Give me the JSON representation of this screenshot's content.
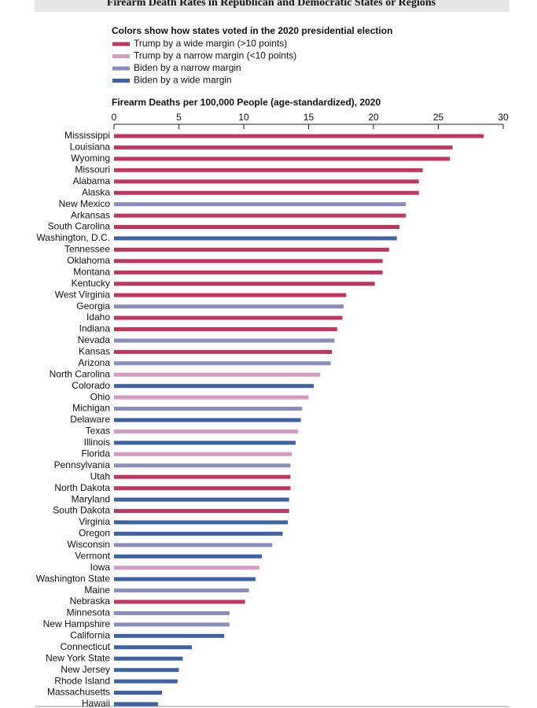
{
  "chart_data": {
    "type": "bar",
    "orientation": "horizontal",
    "title": "Firearm Death Rates in Republican and Democratic States or Regions",
    "legend_title": "Colors show how states voted in the 2020 presidential election",
    "legend": [
      {
        "name": "Trump by a wide margin (>10 points)",
        "color": "#c1365f"
      },
      {
        "name": "Trump by a narrow margin (<10 points)",
        "color": "#d69bc3"
      },
      {
        "name": "Biden by a narrow margin",
        "color": "#8b8dc1"
      },
      {
        "name": "Biden by a wide margin",
        "color": "#3d63a5"
      }
    ],
    "x_label": "Firearm Deaths per 100,000 People (age-standardized), 2020",
    "xlim": [
      0,
      30
    ],
    "xticks": [
      0,
      5,
      10,
      15,
      20,
      25,
      30
    ],
    "grid": false,
    "categories": [
      "Mississippi",
      "Louisiana",
      "Wyoming",
      "Missouri",
      "Alabama",
      "Alaska",
      "New Mexico",
      "Arkansas",
      "South Carolina",
      "Washington, D.C.",
      "Tennessee",
      "Oklahoma",
      "Montana",
      "Kentucky",
      "West Virginia",
      "Georgia",
      "Idaho",
      "Indiana",
      "Nevada",
      "Kansas",
      "Arizona",
      "North Carolina",
      "Colorado",
      "Ohio",
      "Michigan",
      "Delaware",
      "Texas",
      "Illinois",
      "Florida",
      "Pennsylvania",
      "Utah",
      "North Dakota",
      "Maryland",
      "South Dakota",
      "Virginia",
      "Oregon",
      "Wisconsin",
      "Vermont",
      "Iowa",
      "Washington State",
      "Maine",
      "Nebraska",
      "Minnesota",
      "New Hampshire",
      "California",
      "Connecticut",
      "New York State",
      "New Jersey",
      "Rhode Island",
      "Massachusetts",
      "Hawaii"
    ],
    "values": [
      28.5,
      26.1,
      25.9,
      23.8,
      23.5,
      23.5,
      22.5,
      22.5,
      22.0,
      21.8,
      21.2,
      20.7,
      20.7,
      20.1,
      17.9,
      17.7,
      17.6,
      17.2,
      17.0,
      16.8,
      16.7,
      15.9,
      15.4,
      15.0,
      14.5,
      14.4,
      14.2,
      14.0,
      13.7,
      13.6,
      13.6,
      13.6,
      13.5,
      13.5,
      13.4,
      13.0,
      12.2,
      11.4,
      11.2,
      10.9,
      10.4,
      10.1,
      8.9,
      8.9,
      8.5,
      6.0,
      5.3,
      5.0,
      4.9,
      3.7,
      3.4
    ],
    "colors": [
      "#c1365f",
      "#c1365f",
      "#c1365f",
      "#c1365f",
      "#c1365f",
      "#c1365f",
      "#8b8dc1",
      "#c1365f",
      "#c1365f",
      "#3d63a5",
      "#c1365f",
      "#c1365f",
      "#c1365f",
      "#c1365f",
      "#c1365f",
      "#8b8dc1",
      "#c1365f",
      "#c1365f",
      "#8b8dc1",
      "#c1365f",
      "#8b8dc1",
      "#d69bc3",
      "#3d63a5",
      "#d69bc3",
      "#8b8dc1",
      "#3d63a5",
      "#d69bc3",
      "#3d63a5",
      "#d69bc3",
      "#8b8dc1",
      "#c1365f",
      "#c1365f",
      "#3d63a5",
      "#c1365f",
      "#3d63a5",
      "#3d63a5",
      "#8b8dc1",
      "#3d63a5",
      "#d69bc3",
      "#3d63a5",
      "#8b8dc1",
      "#c1365f",
      "#8b8dc1",
      "#8b8dc1",
      "#3d63a5",
      "#3d63a5",
      "#3d63a5",
      "#3d63a5",
      "#3d63a5",
      "#3d63a5",
      "#3d63a5"
    ]
  }
}
